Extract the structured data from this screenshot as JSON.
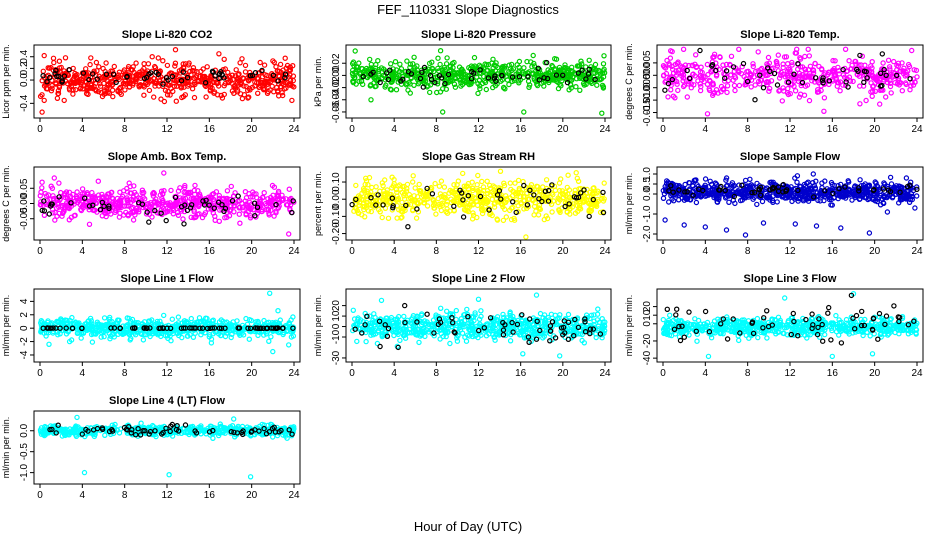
{
  "figure": {
    "title": "FEF_110331  Slope Diagnostics",
    "xlabel": "Hour of Day (UTC)"
  },
  "chart_data": [
    {
      "type": "scatter",
      "title": "Slope Li-820 CO2",
      "ylabel": "Licor ppm per min.",
      "xlim": [
        0,
        24
      ],
      "x_ticks": [
        0,
        4,
        8,
        12,
        16,
        20,
        24
      ],
      "ylim": [
        -0.6,
        0.55
      ],
      "y_ticks": [
        -0.4,
        0.0,
        0.2,
        0.4
      ],
      "y_tick_labels": [
        "-0.4",
        "0.0",
        "0.2",
        "0.4"
      ],
      "series": [
        {
          "color": "#ff0000",
          "values": [
            {
              "x": 0.2,
              "y": -0.55
            },
            {
              "x": 0.4,
              "y": -0.35
            },
            {
              "x": 0.4,
              "y": 0.42
            },
            {
              "x": 1.3,
              "y": 0.3
            },
            {
              "x": 4.8,
              "y": 0.38
            },
            {
              "x": 10.6,
              "y": 0.4
            },
            {
              "x": 12.8,
              "y": 0.52
            },
            {
              "x": 13.4,
              "y": -0.3
            },
            {
              "x": 16.9,
              "y": 0.45
            },
            {
              "x": 23.8,
              "y": -0.35
            }
          ],
          "count": 600,
          "distribution": {
            "center": 0.0,
            "spread": 0.14
          }
        },
        {
          "color": "#000000",
          "values": [
            {
              "x": 4.1,
              "y": 0.12
            },
            {
              "x": 8.2,
              "y": 0.05
            },
            {
              "x": 12.1,
              "y": 0.0
            },
            {
              "x": 16.3,
              "y": 0.15
            },
            {
              "x": 20.1,
              "y": 0.08
            },
            {
              "x": 23.2,
              "y": 0.1
            }
          ],
          "count": 45,
          "distribution": {
            "center": 0.05,
            "spread": 0.06
          }
        }
      ]
    },
    {
      "type": "scatter",
      "title": "Slope Li-820 Pressure",
      "ylabel": "kPa per min.",
      "xlim": [
        0,
        24
      ],
      "x_ticks": [
        0,
        4,
        8,
        12,
        16,
        20,
        24
      ],
      "ylim": [
        -0.065,
        0.045
      ],
      "y_ticks": [
        -0.06,
        -0.04,
        -0.02,
        0.0,
        0.02
      ],
      "y_tick_labels": [
        "-0.06",
        "-0.04",
        "-0.02",
        "0.00",
        "0.02"
      ],
      "series": [
        {
          "color": "#00cc00",
          "values": [
            {
              "x": 0.3,
              "y": 0.04
            },
            {
              "x": 8.6,
              "y": -0.06
            },
            {
              "x": 16.3,
              "y": -0.06
            },
            {
              "x": 23.7,
              "y": -0.062
            },
            {
              "x": 1.8,
              "y": -0.04
            }
          ],
          "count": 600,
          "distribution": {
            "center": 0.0,
            "spread": 0.011
          }
        },
        {
          "color": "#000000",
          "values": [
            {
              "x": 2.0,
              "y": 0.005
            },
            {
              "x": 6.5,
              "y": -0.005
            },
            {
              "x": 14.2,
              "y": 0.0
            },
            {
              "x": 22.5,
              "y": 0.01
            }
          ],
          "count": 45,
          "distribution": {
            "center": 0.0,
            "spread": 0.006
          }
        }
      ]
    },
    {
      "type": "scatter",
      "title": "Slope Li-820 Temp.",
      "ylabel": "degrees C per min.",
      "xlim": [
        0,
        24
      ],
      "x_ticks": [
        0,
        4,
        8,
        12,
        16,
        20,
        24
      ],
      "ylim": [
        -0.016,
        0.011
      ],
      "y_ticks": [
        -0.015,
        -0.01,
        -0.005,
        0.0,
        0.005
      ],
      "y_tick_labels": [
        "-0.015",
        "-0.010",
        "-0.005",
        "0.000",
        "0.005"
      ],
      "series": [
        {
          "color": "#ff00ff",
          "values": [
            {
              "x": 4.2,
              "y": -0.0155
            },
            {
              "x": 15.2,
              "y": -0.0145
            },
            {
              "x": 23.5,
              "y": 0.01
            },
            {
              "x": 12.5,
              "y": 0.009
            }
          ],
          "count": 500,
          "distribution": {
            "center": 0.0,
            "spread": 0.004
          }
        },
        {
          "color": "#000000",
          "values": [
            {
              "x": 3.5,
              "y": 0.01
            },
            {
              "x": 18.6,
              "y": 0.008
            },
            {
              "x": 9.5,
              "y": -0.005
            }
          ],
          "count": 45,
          "distribution": {
            "center": 0.0,
            "spread": 0.003
          }
        }
      ]
    },
    {
      "type": "scatter",
      "title": "Slope Amb. Box Temp.",
      "ylabel": "degrees C per min.",
      "xlim": [
        0,
        24
      ],
      "x_ticks": [
        0,
        4,
        8,
        12,
        16,
        20,
        24
      ],
      "ylim": [
        -0.11,
        0.11
      ],
      "y_ticks": [
        -0.05,
        0.0,
        0.05
      ],
      "y_tick_labels": [
        "-0.05",
        "0.00",
        "0.05"
      ],
      "series": [
        {
          "color": "#ff00ff",
          "values": [
            {
              "x": 11.7,
              "y": 0.1
            },
            {
              "x": 23.5,
              "y": -0.1
            },
            {
              "x": 0.2,
              "y": 0.07
            }
          ],
          "count": 600,
          "distribution": {
            "center": 0.0,
            "spread": 0.025
          }
        },
        {
          "color": "#000000",
          "values": [
            {
              "x": 23.8,
              "y": -0.03
            },
            {
              "x": 20.3,
              "y": -0.04
            },
            {
              "x": 12.8,
              "y": 0.02
            }
          ],
          "count": 45,
          "distribution": {
            "center": -0.01,
            "spread": 0.02
          }
        }
      ]
    },
    {
      "type": "scatter",
      "title": "Slope Gas Stream RH",
      "ylabel": "percent per min.",
      "xlim": [
        0,
        24
      ],
      "x_ticks": [
        0,
        4,
        8,
        12,
        16,
        20,
        24
      ],
      "ylim": [
        -0.22,
        0.17
      ],
      "y_ticks": [
        -0.2,
        -0.1,
        0.0,
        0.1
      ],
      "y_tick_labels": [
        "-0.20",
        "-0.10",
        "0.00",
        "0.10"
      ],
      "series": [
        {
          "color": "#ffff00",
          "values": [
            {
              "x": 16.5,
              "y": -0.22
            },
            {
              "x": 10.5,
              "y": 0.15
            },
            {
              "x": 20.5,
              "y": 0.14
            }
          ],
          "count": 600,
          "distribution": {
            "center": 0.0,
            "spread": 0.05
          }
        },
        {
          "color": "#000000",
          "values": [
            {
              "x": 5.3,
              "y": -0.16
            },
            {
              "x": 22.5,
              "y": -0.1
            },
            {
              "x": 16.3,
              "y": 0.08
            }
          ],
          "count": 45,
          "distribution": {
            "center": 0.0,
            "spread": 0.04
          }
        }
      ]
    },
    {
      "type": "scatter",
      "title": "Slope Sample Flow",
      "ylabel": "ml/min per min.",
      "xlim": [
        0,
        24
      ],
      "x_ticks": [
        0,
        4,
        8,
        12,
        16,
        20,
        24
      ],
      "ylim": [
        -2.15,
        1.2
      ],
      "y_ticks": [
        -2.0,
        -1.0,
        0.0,
        0.5,
        1.0
      ],
      "y_tick_labels": [
        "-2.0",
        "-1.0",
        "0.0",
        "0.5",
        "1.0"
      ],
      "series": [
        {
          "color": "#0000cc",
          "values": [
            {
              "x": 0.2,
              "y": -1.3
            },
            {
              "x": 2.0,
              "y": -1.55
            },
            {
              "x": 4.0,
              "y": -1.65
            },
            {
              "x": 6.0,
              "y": -1.8
            },
            {
              "x": 7.8,
              "y": -2.05
            },
            {
              "x": 9.5,
              "y": -1.45
            },
            {
              "x": 12.5,
              "y": -1.5
            },
            {
              "x": 14.5,
              "y": -1.6
            },
            {
              "x": 16.8,
              "y": -1.7
            },
            {
              "x": 19.5,
              "y": -1.95
            },
            {
              "x": 21.2,
              "y": -0.9
            },
            {
              "x": 23.8,
              "y": -0.7
            },
            {
              "x": 14.2,
              "y": 1.0
            },
            {
              "x": 23.0,
              "y": 0.8
            }
          ],
          "count": 700,
          "distribution": {
            "center": 0.1,
            "spread": 0.25
          }
        },
        {
          "color": "#000000",
          "values": [
            {
              "x": 1.5,
              "y": 0.2
            },
            {
              "x": 10.5,
              "y": 0.3
            },
            {
              "x": 18.5,
              "y": 0.3
            }
          ],
          "count": 45,
          "distribution": {
            "center": 0.2,
            "spread": 0.15
          }
        }
      ]
    },
    {
      "type": "scatter",
      "title": "Slope Line 1 Flow",
      "ylabel": "ml/min per min.",
      "xlim": [
        0,
        24
      ],
      "x_ticks": [
        0,
        4,
        8,
        12,
        16,
        20,
        24
      ],
      "ylim": [
        -4.6,
        5.4
      ],
      "y_ticks": [
        -4,
        -2,
        0,
        2,
        4
      ],
      "y_tick_labels": [
        "-4",
        "-2",
        "0",
        "2",
        "4"
      ],
      "series": [
        {
          "color": "#00ffff",
          "values": [
            {
              "x": 21.7,
              "y": 5.2
            },
            {
              "x": 22.0,
              "y": -3.5
            },
            {
              "x": 2.8,
              "y": -2.0
            },
            {
              "x": 16.2,
              "y": -2.2
            },
            {
              "x": 23.5,
              "y": -2.5
            }
          ],
          "count": 650,
          "distribution": {
            "center": 0.0,
            "spread": 0.7
          }
        },
        {
          "color": "#000000",
          "values": [
            {
              "x": 0.3,
              "y": 0.0
            },
            {
              "x": 12.0,
              "y": 0.0
            },
            {
              "x": 23.9,
              "y": 0.0
            }
          ],
          "count": 70,
          "distribution": {
            "center": 0.0,
            "spread": 0.02
          }
        }
      ]
    },
    {
      "type": "scatter",
      "title": "Slope Line 2 Flow",
      "ylabel": "ml/min per min.",
      "xlim": [
        0,
        24
      ],
      "x_ticks": [
        0,
        4,
        8,
        12,
        16,
        20,
        24
      ],
      "ylim": [
        -31,
        33
      ],
      "y_ticks": [
        -30,
        -10,
        0,
        10,
        20
      ],
      "y_tick_labels": [
        "-30",
        "-10",
        "0",
        "10",
        "20"
      ],
      "series": [
        {
          "color": "#00ffff",
          "values": [
            {
              "x": 17.5,
              "y": 30
            },
            {
              "x": 16.2,
              "y": -26
            },
            {
              "x": 19.7,
              "y": -28
            },
            {
              "x": 2.8,
              "y": 25
            },
            {
              "x": 12.0,
              "y": 26
            }
          ],
          "count": 650,
          "distribution": {
            "center": 0.0,
            "spread": 6
          }
        },
        {
          "color": "#000000",
          "values": [
            {
              "x": 16.8,
              "y": -15
            },
            {
              "x": 5.0,
              "y": 20
            },
            {
              "x": 20.0,
              "y": -8
            }
          ],
          "count": 60,
          "distribution": {
            "center": 0.0,
            "spread": 8
          }
        }
      ]
    },
    {
      "type": "scatter",
      "title": "Slope Line 3 Flow",
      "ylabel": "ml/min per min.",
      "xlim": [
        0,
        24
      ],
      "x_ticks": [
        0,
        4,
        8,
        12,
        16,
        20,
        24
      ],
      "ylim": [
        -41,
        37
      ],
      "y_ticks": [
        -40,
        -20,
        0,
        10,
        20
      ],
      "y_tick_labels": [
        "-40",
        "-20",
        "0",
        "10",
        "20"
      ],
      "series": [
        {
          "color": "#00ffff",
          "values": [
            {
              "x": 16.0,
              "y": -38
            },
            {
              "x": 19.8,
              "y": -35
            },
            {
              "x": 4.3,
              "y": -38
            },
            {
              "x": 18.0,
              "y": 35
            },
            {
              "x": 11.5,
              "y": 30
            }
          ],
          "count": 650,
          "distribution": {
            "center": -4,
            "spread": 5
          }
        },
        {
          "color": "#000000",
          "values": [
            {
              "x": 17.8,
              "y": 33
            },
            {
              "x": 20.3,
              "y": -18
            },
            {
              "x": 23.7,
              "y": 3
            }
          ],
          "count": 60,
          "distribution": {
            "center": 0.0,
            "spread": 10
          }
        }
      ]
    },
    {
      "type": "scatter",
      "title": "Slope Line 4 (LT) Flow",
      "ylabel": "ml/min per min.",
      "xlim": [
        0,
        24
      ],
      "x_ticks": [
        0,
        4,
        8,
        12,
        16,
        20,
        24
      ],
      "ylim": [
        -1.2,
        0.4
      ],
      "y_ticks": [
        -1.0,
        -0.5,
        0.0
      ],
      "y_tick_labels": [
        "-1.0",
        "-0.5",
        "0.0"
      ],
      "series": [
        {
          "color": "#00ffff",
          "values": [
            {
              "x": 4.2,
              "y": -1.0
            },
            {
              "x": 12.2,
              "y": -1.05
            },
            {
              "x": 19.9,
              "y": -1.1
            },
            {
              "x": 3.5,
              "y": 0.32
            },
            {
              "x": 18.3,
              "y": 0.28
            }
          ],
          "count": 550,
          "distribution": {
            "center": 0.0,
            "spread": 0.06
          }
        },
        {
          "color": "#000000",
          "values": [
            {
              "x": 12.5,
              "y": 0.15
            },
            {
              "x": 4.0,
              "y": -0.08
            }
          ],
          "count": 60,
          "distribution": {
            "center": 0.0,
            "spread": 0.05
          }
        }
      ]
    }
  ]
}
